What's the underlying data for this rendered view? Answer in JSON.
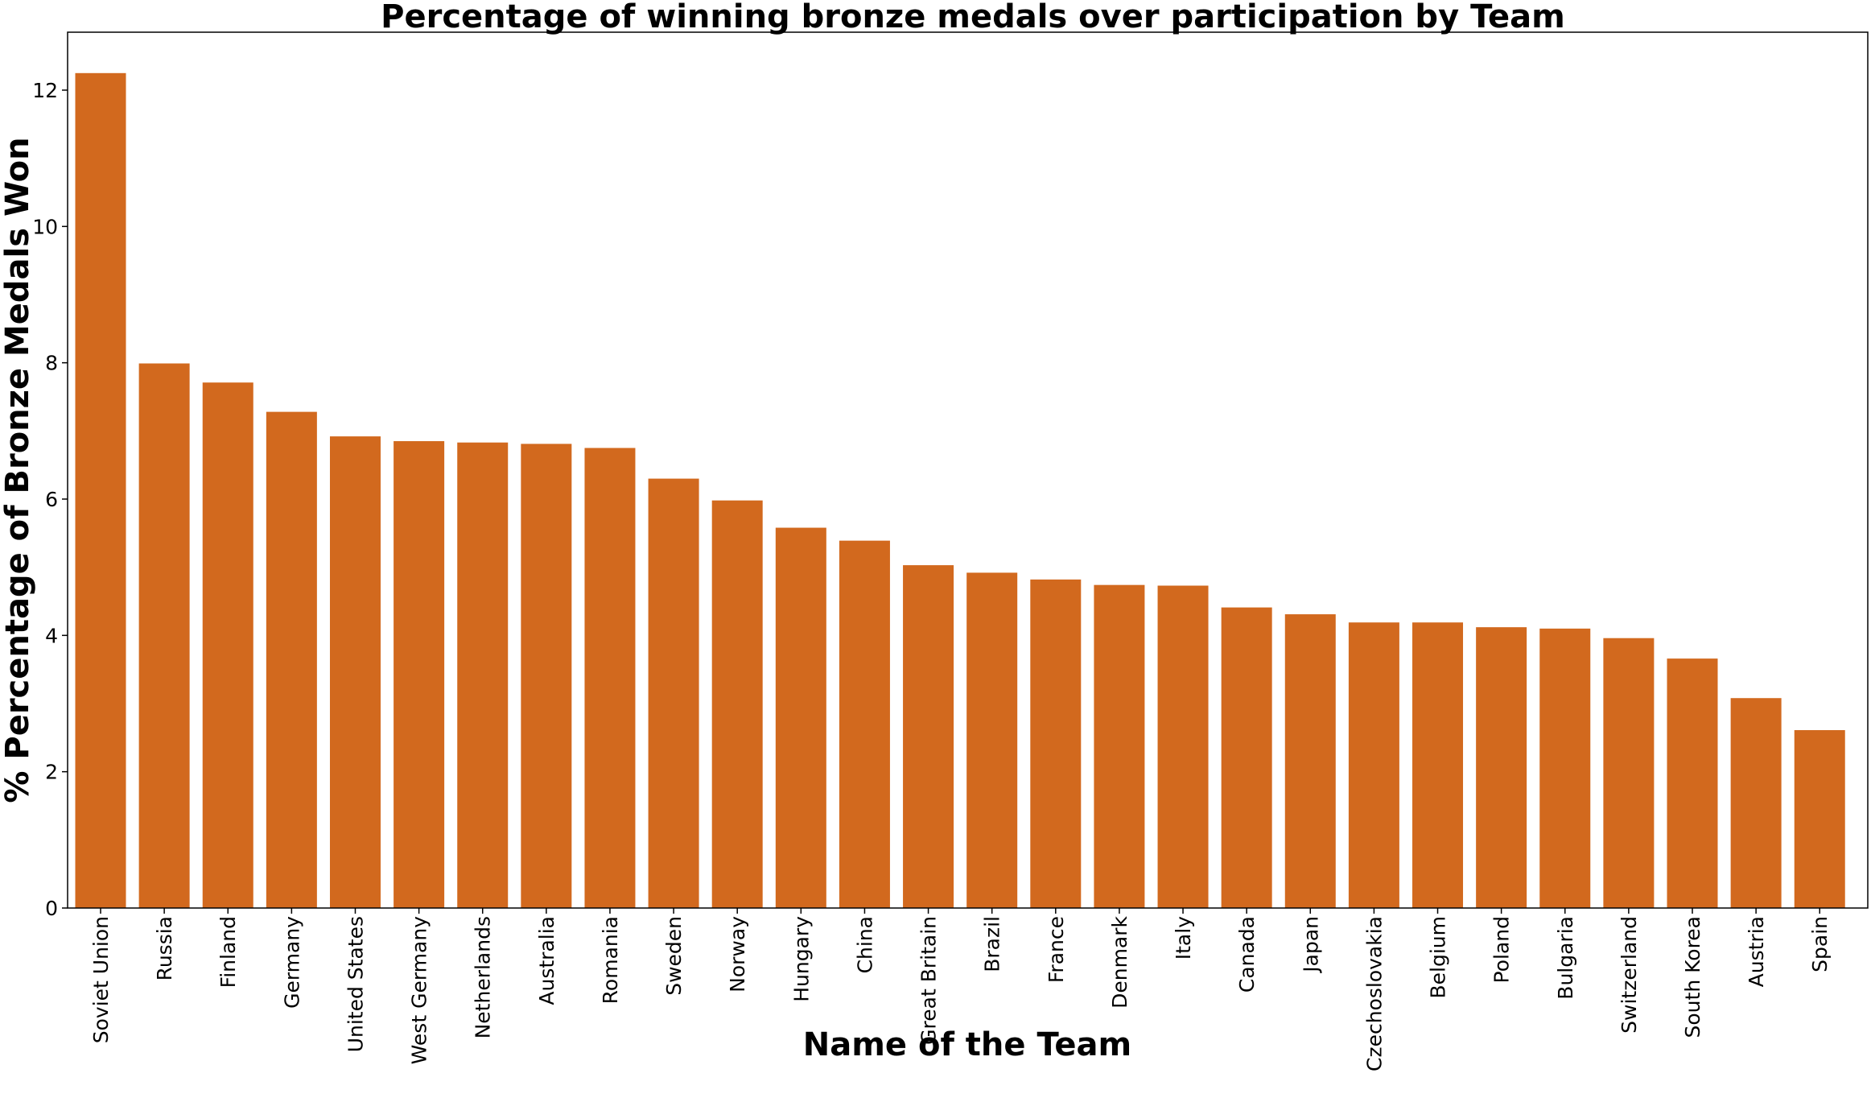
{
  "chart_data": {
    "type": "bar",
    "title": "Percentage of winning bronze medals over participation by Team",
    "xlabel": "Name of the Team",
    "ylabel": "% Percentage of Bronze Medals Won",
    "categories": [
      "Soviet Union",
      "Russia",
      "Finland",
      "Germany",
      "United States",
      "West Germany",
      "Netherlands",
      "Australia",
      "Romania",
      "Sweden",
      "Norway",
      "Hungary",
      "China",
      "Great Britain",
      "Brazil",
      "France",
      "Denmark",
      "Italy",
      "Canada",
      "Japan",
      "Czechoslovakia",
      "Belgium",
      "Poland",
      "Bulgaria",
      "Switzerland",
      "South Korea",
      "Austria",
      "Spain"
    ],
    "values": [
      12.25,
      7.99,
      7.71,
      7.28,
      6.92,
      6.85,
      6.83,
      6.81,
      6.75,
      6.3,
      5.98,
      5.58,
      5.39,
      5.03,
      4.92,
      4.82,
      4.74,
      4.73,
      4.41,
      4.31,
      4.19,
      4.19,
      4.12,
      4.1,
      3.96,
      3.66,
      3.08,
      2.61
    ],
    "ylim": [
      0,
      12.85
    ],
    "yticks": [
      "0",
      "2",
      "4",
      "6",
      "8",
      "10",
      "12"
    ],
    "color": "#d2691e",
    "grid": false,
    "legend": "none"
  }
}
